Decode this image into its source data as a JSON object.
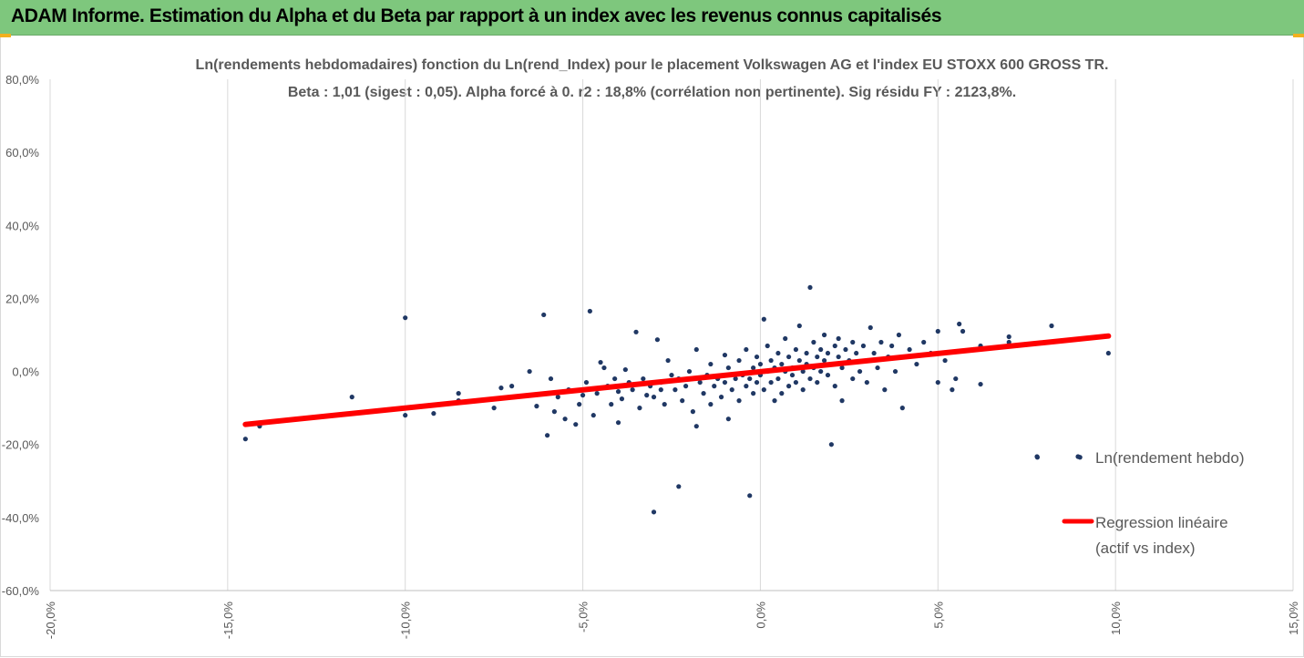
{
  "header": {
    "title": "ADAM Informe. Estimation du Alpha et du Beta par rapport à un index avec les revenus connus capitalisés",
    "accent_color": "#7ec77d",
    "corner_color": "#f2b01e"
  },
  "chart_data": {
    "type": "scatter",
    "title": "Ln(rendements hebdomadaires) fonction du Ln(rend_Index) pour le placement Volkswagen AG et l'index EU STOXX 600 GROSS TR.",
    "subtitle": "Beta : 1,01 (sigest : 0,05). Alpha forcé à 0. r2 : 18,8% (corrélation non pertinente). Sig résidu FY : 2123,8%.",
    "xlabel": "",
    "ylabel": "",
    "xlim": [
      -0.2,
      0.15
    ],
    "ylim": [
      -0.6,
      0.8
    ],
    "x_ticks": [
      -0.2,
      -0.15,
      -0.1,
      -0.05,
      0.0,
      0.05,
      0.1,
      0.15
    ],
    "x_tick_labels": [
      "-20,0%",
      "-15,0%",
      "-10,0%",
      "-5,0%",
      "0,0%",
      "5,0%",
      "10,0%",
      "15,0%"
    ],
    "y_ticks": [
      0.8,
      0.6,
      0.4,
      0.2,
      0.0,
      -0.2,
      -0.4,
      -0.6
    ],
    "y_tick_labels": [
      "80,0%",
      "60,0%",
      "40,0%",
      "20,0%",
      "0,0%",
      "-20,0%",
      "-40,0%",
      "-60,0%"
    ],
    "grid": "vertical",
    "legend_position": "right",
    "series": [
      {
        "name": "Ln(rendement hebdo)",
        "kind": "scatter",
        "color": "#203864",
        "points": [
          [
            -0.145,
            -0.185
          ],
          [
            -0.141,
            -0.15
          ],
          [
            -0.115,
            -0.07
          ],
          [
            -0.1,
            0.147
          ],
          [
            -0.1,
            -0.12
          ],
          [
            -0.092,
            -0.115
          ],
          [
            -0.085,
            -0.06
          ],
          [
            -0.085,
            -0.08
          ],
          [
            -0.075,
            -0.1
          ],
          [
            -0.073,
            -0.045
          ],
          [
            -0.07,
            -0.04
          ],
          [
            -0.065,
            0.0
          ],
          [
            -0.063,
            -0.095
          ],
          [
            -0.06,
            -0.175
          ],
          [
            -0.061,
            0.155
          ],
          [
            -0.059,
            -0.02
          ],
          [
            -0.058,
            -0.11
          ],
          [
            -0.057,
            -0.07
          ],
          [
            -0.055,
            -0.13
          ],
          [
            -0.054,
            -0.05
          ],
          [
            -0.052,
            -0.145
          ],
          [
            -0.051,
            -0.09
          ],
          [
            -0.05,
            -0.065
          ],
          [
            -0.049,
            -0.03
          ],
          [
            -0.048,
            0.165
          ],
          [
            -0.047,
            -0.12
          ],
          [
            -0.046,
            -0.06
          ],
          [
            -0.045,
            0.025
          ],
          [
            -0.044,
            0.01
          ],
          [
            -0.043,
            -0.04
          ],
          [
            -0.042,
            -0.09
          ],
          [
            -0.041,
            -0.02
          ],
          [
            -0.04,
            -0.14
          ],
          [
            -0.04,
            -0.055
          ],
          [
            -0.039,
            -0.075
          ],
          [
            -0.038,
            0.005
          ],
          [
            -0.037,
            -0.03
          ],
          [
            -0.036,
            -0.05
          ],
          [
            -0.035,
            0.108
          ],
          [
            -0.034,
            -0.1
          ],
          [
            -0.033,
            -0.02
          ],
          [
            -0.032,
            -0.065
          ],
          [
            -0.031,
            -0.04
          ],
          [
            -0.03,
            -0.07
          ],
          [
            -0.03,
            -0.385
          ],
          [
            -0.029,
            0.087
          ],
          [
            -0.028,
            -0.03
          ],
          [
            -0.028,
            -0.05
          ],
          [
            -0.027,
            -0.09
          ],
          [
            -0.026,
            0.03
          ],
          [
            -0.025,
            -0.01
          ],
          [
            -0.024,
            -0.05
          ],
          [
            -0.023,
            -0.315
          ],
          [
            -0.023,
            -0.02
          ],
          [
            -0.022,
            -0.08
          ],
          [
            -0.021,
            -0.04
          ],
          [
            -0.02,
            0.0
          ],
          [
            -0.019,
            -0.11
          ],
          [
            -0.018,
            -0.15
          ],
          [
            -0.018,
            0.06
          ],
          [
            -0.017,
            -0.03
          ],
          [
            -0.016,
            -0.06
          ],
          [
            -0.015,
            -0.01
          ],
          [
            -0.014,
            0.02
          ],
          [
            -0.014,
            -0.09
          ],
          [
            -0.013,
            -0.04
          ],
          [
            -0.012,
            -0.02
          ],
          [
            -0.011,
            -0.07
          ],
          [
            -0.01,
            0.045
          ],
          [
            -0.01,
            -0.03
          ],
          [
            -0.009,
            -0.13
          ],
          [
            -0.009,
            0.01
          ],
          [
            -0.008,
            -0.05
          ],
          [
            -0.007,
            -0.02
          ],
          [
            -0.006,
            0.03
          ],
          [
            -0.006,
            -0.08
          ],
          [
            -0.005,
            -0.01
          ],
          [
            -0.004,
            -0.04
          ],
          [
            -0.004,
            0.06
          ],
          [
            -0.003,
            -0.34
          ],
          [
            -0.003,
            -0.02
          ],
          [
            -0.002,
            0.01
          ],
          [
            -0.002,
            -0.06
          ],
          [
            -0.001,
            -0.03
          ],
          [
            -0.001,
            0.04
          ],
          [
            0.0,
            -0.01
          ],
          [
            0.0,
            0.02
          ],
          [
            0.001,
            0.143
          ],
          [
            0.001,
            -0.05
          ],
          [
            0.002,
            0.0
          ],
          [
            0.002,
            0.07
          ],
          [
            0.003,
            -0.03
          ],
          [
            0.003,
            0.03
          ],
          [
            0.004,
            -0.08
          ],
          [
            0.004,
            0.01
          ],
          [
            0.005,
            0.05
          ],
          [
            0.005,
            -0.02
          ],
          [
            0.006,
            0.02
          ],
          [
            0.006,
            -0.06
          ],
          [
            0.007,
            0.0
          ],
          [
            0.007,
            0.09
          ],
          [
            0.008,
            -0.04
          ],
          [
            0.008,
            0.04
          ],
          [
            0.009,
            0.01
          ],
          [
            0.009,
            -0.01
          ],
          [
            0.01,
            0.06
          ],
          [
            0.01,
            -0.03
          ],
          [
            0.011,
            0.03
          ],
          [
            0.011,
            0.125
          ],
          [
            0.012,
            0.0
          ],
          [
            0.012,
            -0.05
          ],
          [
            0.013,
            0.05
          ],
          [
            0.013,
            0.02
          ],
          [
            0.014,
            0.23
          ],
          [
            0.014,
            -0.02
          ],
          [
            0.015,
            0.08
          ],
          [
            0.015,
            0.01
          ],
          [
            0.016,
            0.04
          ],
          [
            0.016,
            -0.03
          ],
          [
            0.017,
            0.06
          ],
          [
            0.017,
            0.0
          ],
          [
            0.018,
            0.03
          ],
          [
            0.018,
            0.1
          ],
          [
            0.019,
            -0.01
          ],
          [
            0.019,
            0.05
          ],
          [
            0.02,
            0.02
          ],
          [
            0.02,
            -0.2
          ],
          [
            0.021,
            0.07
          ],
          [
            0.021,
            -0.04
          ],
          [
            0.022,
            0.04
          ],
          [
            0.022,
            0.09
          ],
          [
            0.023,
            0.01
          ],
          [
            0.023,
            -0.08
          ],
          [
            0.024,
            0.06
          ],
          [
            0.025,
            0.03
          ],
          [
            0.026,
            0.08
          ],
          [
            0.026,
            -0.02
          ],
          [
            0.027,
            0.05
          ],
          [
            0.028,
            0.0
          ],
          [
            0.029,
            0.07
          ],
          [
            0.03,
            0.03
          ],
          [
            0.03,
            -0.03
          ],
          [
            0.031,
            0.12
          ],
          [
            0.032,
            0.05
          ],
          [
            0.033,
            0.01
          ],
          [
            0.034,
            0.08
          ],
          [
            0.035,
            -0.05
          ],
          [
            0.036,
            0.04
          ],
          [
            0.037,
            0.07
          ],
          [
            0.038,
            0.0
          ],
          [
            0.039,
            0.1
          ],
          [
            0.04,
            -0.1
          ],
          [
            0.041,
            0.04
          ],
          [
            0.042,
            0.06
          ],
          [
            0.044,
            0.02
          ],
          [
            0.046,
            0.08
          ],
          [
            0.048,
            0.05
          ],
          [
            0.05,
            -0.03
          ],
          [
            0.05,
            0.11
          ],
          [
            0.052,
            0.03
          ],
          [
            0.054,
            -0.05
          ],
          [
            0.055,
            -0.02
          ],
          [
            0.056,
            0.13
          ],
          [
            0.057,
            0.11
          ],
          [
            0.06,
            0.06
          ],
          [
            0.062,
            -0.035
          ],
          [
            0.062,
            0.07
          ],
          [
            0.07,
            0.08
          ],
          [
            0.07,
            0.095
          ],
          [
            0.078,
            -0.235
          ],
          [
            0.082,
            0.125
          ],
          [
            0.09,
            -0.235
          ],
          [
            0.098,
            0.05
          ]
        ]
      },
      {
        "name": "Regression linéaire\n(actif vs index)",
        "kind": "line",
        "color": "#ff0000",
        "points": [
          [
            -0.145,
            -0.145
          ],
          [
            0.098,
            0.097
          ]
        ]
      }
    ]
  }
}
